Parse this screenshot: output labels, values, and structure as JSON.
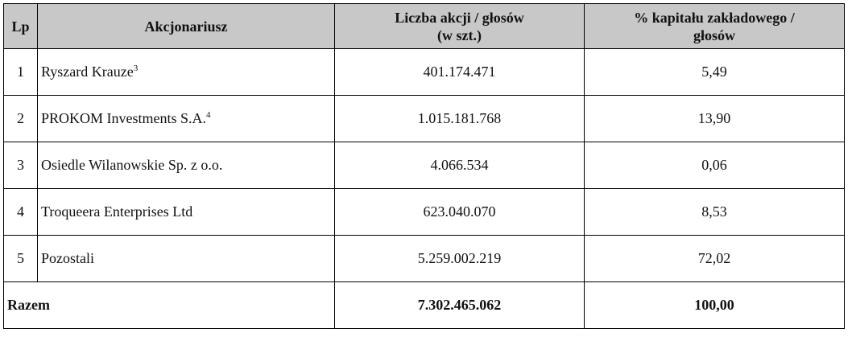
{
  "header": {
    "lp": "Lp",
    "shareholder": "Akcjonariusz",
    "shares": [
      "Liczba akcji / głosów",
      "(w szt.)"
    ],
    "percent": "% kapitału zakładowego / głosów"
  },
  "rows": [
    {
      "lp": "1",
      "name": "Ryszard Krauze",
      "note": "3",
      "shares": "401.174.471",
      "percent": "5,49"
    },
    {
      "lp": "2",
      "name": "PROKOM Investments S.A.",
      "note": "4",
      "shares": "1.015.181.768",
      "percent": "13,90"
    },
    {
      "lp": "3",
      "name": "Osiedle Wilanowskie Sp. z o.o.",
      "shares": "4.066.534",
      "percent": "0,06"
    },
    {
      "lp": "4",
      "name": "Troqueera Enterprises Ltd",
      "shares": "623.040.070",
      "percent": "8,53"
    },
    {
      "lp": "5",
      "name": "Pozostali",
      "shares": "5.259.002.219",
      "percent": "72,02"
    }
  ],
  "total": {
    "label": "Razem",
    "shares": "7.302.465.062",
    "percent": "100,00"
  }
}
